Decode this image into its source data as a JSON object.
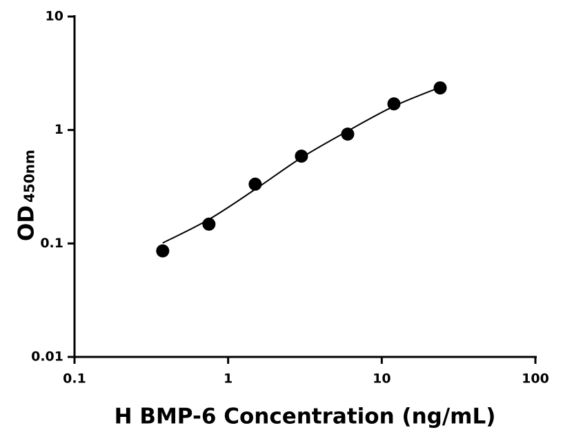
{
  "chart_data": {
    "type": "scatter",
    "xlabel": "H BMP-6 Concentration (ng/mL)",
    "ylabel": "OD",
    "ylabel_sub": "450nm",
    "x": [
      0.375,
      0.75,
      1.5,
      3,
      6,
      12,
      24
    ],
    "values": [
      0.086,
      0.148,
      0.333,
      0.588,
      0.92,
      1.7,
      2.35
    ],
    "color": "#000000",
    "fit": {
      "x": [
        0.375,
        0.75,
        1.5,
        3,
        6,
        12,
        24
      ],
      "values": [
        0.101,
        0.163,
        0.3,
        0.57,
        0.98,
        1.62,
        2.38
      ]
    },
    "xlim": [
      0.1,
      100
    ],
    "ylim": [
      0.01,
      10
    ],
    "xticks": [
      0.1,
      1,
      10,
      100
    ],
    "yticks": [
      0.01,
      0.1,
      1,
      10
    ],
    "xlog": true,
    "ylog": true
  }
}
